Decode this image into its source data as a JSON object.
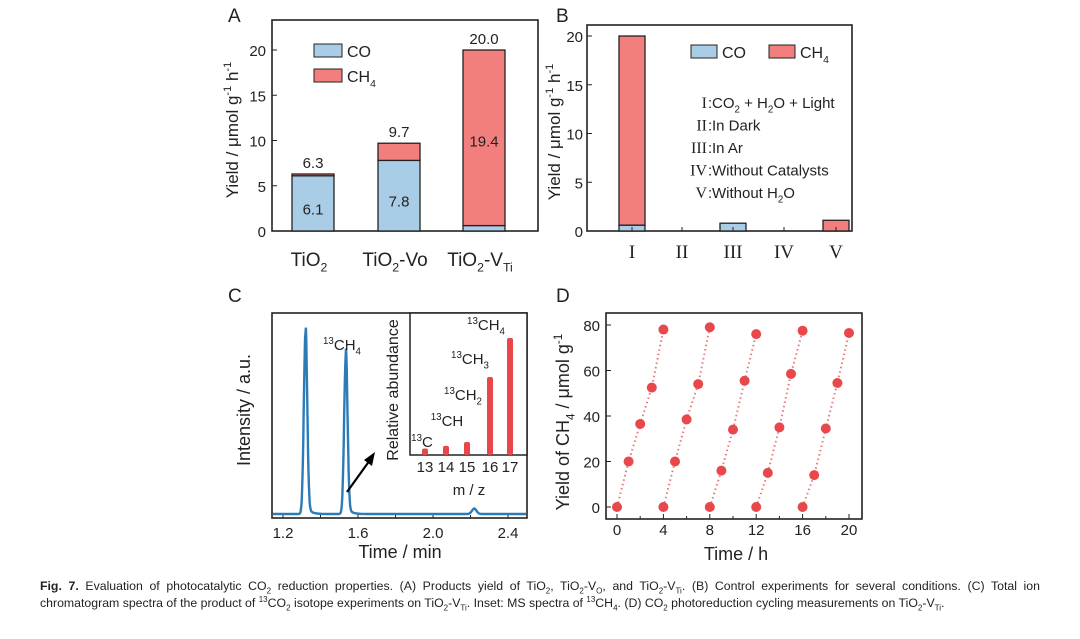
{
  "colors": {
    "co": "#a9cde6",
    "ch4": "#f27e7e",
    "line": "#2b7bb9",
    "dot": "#e8474b",
    "axis": "#222222"
  },
  "caption": "Fig. 7.  Evaluation of photocatalytic CO_{2} reduction properties. (A) Products yield of TiO_{2}, TiO_{2}-V_{O}, and TiO_{2}-V_{Ti}. (B) Control experiments for several conditions. (C) Total ion chromatogram spectra of the product of ^{13}CO_{2} isotope experiments on TiO_{2}-V_{Ti}. Inset: MS spectra of ^{13}CH_{4}. (D) CO_{2} photoreduction cycling measurements on TiO_{2}-V_{Ti}.",
  "chart_data": [
    {
      "panel": "A",
      "type": "bar",
      "stacked": true,
      "ylabel": "Yield / μmol g^{-1} h^{-1}",
      "ylim": [
        0,
        22
      ],
      "yticks": [
        0,
        5,
        10,
        15,
        20
      ],
      "categories": [
        "TiO_{2}",
        "TiO_{2}-Vo",
        "TiO_{2}-V_{Ti}"
      ],
      "series": [
        {
          "name": "CO",
          "values": [
            6.1,
            7.8,
            0.6
          ]
        },
        {
          "name": "CH_{4}",
          "values": [
            0.2,
            1.9,
            19.4
          ]
        }
      ],
      "totals": [
        "6.3",
        "9.7",
        "20.0"
      ],
      "inner_labels": [
        "6.1",
        "7.8",
        "19.4"
      ],
      "legend": "top-left"
    },
    {
      "panel": "B",
      "type": "bar",
      "stacked": true,
      "ylabel": "Yield / μmol g^{-1} h^{-1}",
      "ylim": [
        0,
        21
      ],
      "yticks": [
        0,
        5,
        10,
        15,
        20
      ],
      "categories": [
        "I",
        "II",
        "III",
        "IV",
        "V"
      ],
      "series": [
        {
          "name": "CO",
          "values": [
            0.6,
            0,
            0.8,
            0,
            0
          ]
        },
        {
          "name": "CH_{4}",
          "values": [
            19.4,
            0,
            0,
            0,
            1.1
          ]
        }
      ],
      "legend": "top-right",
      "annotations": [
        {
          "k": "I",
          "t": "CO_{2} + H_{2}O + Light"
        },
        {
          "k": "II",
          "t": "In Dark"
        },
        {
          "k": "III",
          "t": "In Ar"
        },
        {
          "k": "IV",
          "t": "Without Catalysts"
        },
        {
          "k": "V",
          "t": "Without H_{2}O"
        }
      ]
    },
    {
      "panel": "C",
      "type": "line",
      "xlabel": "Time / min",
      "ylabel": "Intensity / a.u.",
      "xlim": [
        1.14,
        2.5
      ],
      "xticks": [
        1.2,
        1.6,
        2.0,
        2.4
      ],
      "peaks": [
        {
          "x": 1.32,
          "height": 1.0
        },
        {
          "x": 1.535,
          "height": 0.87
        },
        {
          "x": 2.22,
          "height": 0.03
        }
      ],
      "annotation": "^{13}CH_{4}",
      "inset": {
        "type": "bar",
        "xlabel": "m / z",
        "ylabel": "Relative abundance",
        "categories": [
          "13",
          "14",
          "15",
          "16",
          "17"
        ],
        "values": [
          0.05,
          0.07,
          0.1,
          0.6,
          0.9
        ],
        "labels": [
          "^{13}C",
          "^{13}CH",
          "^{13}CH_{2}",
          "^{13}CH_{3}",
          "^{13}CH_{4}"
        ]
      }
    },
    {
      "panel": "D",
      "type": "scatter",
      "xlabel": "Time / h",
      "ylabel": "Yield of CH_{4} / μmol g^{-1}",
      "xlim": [
        -1.5,
        21.2
      ],
      "ylim": [
        -5,
        85
      ],
      "xticks": [
        0,
        4,
        8,
        12,
        16,
        20
      ],
      "yticks": [
        0,
        20,
        40,
        60,
        80
      ],
      "cycles": [
        {
          "x": [
            0,
            1,
            2,
            3,
            4
          ],
          "y": [
            0,
            20,
            36.5,
            52.5,
            78
          ]
        },
        {
          "x": [
            4,
            5,
            6,
            7,
            8
          ],
          "y": [
            0,
            20,
            38.5,
            54,
            79
          ]
        },
        {
          "x": [
            8,
            9,
            10,
            11,
            12
          ],
          "y": [
            0,
            16,
            34,
            55.5,
            76
          ]
        },
        {
          "x": [
            12,
            13,
            14,
            15,
            16
          ],
          "y": [
            0,
            15,
            35,
            58.5,
            77.5
          ]
        },
        {
          "x": [
            16,
            17,
            18,
            19,
            20
          ],
          "y": [
            0,
            14,
            34.5,
            54.5,
            76.5
          ]
        }
      ]
    }
  ],
  "panel_letters": [
    "A",
    "B",
    "C",
    "D"
  ]
}
